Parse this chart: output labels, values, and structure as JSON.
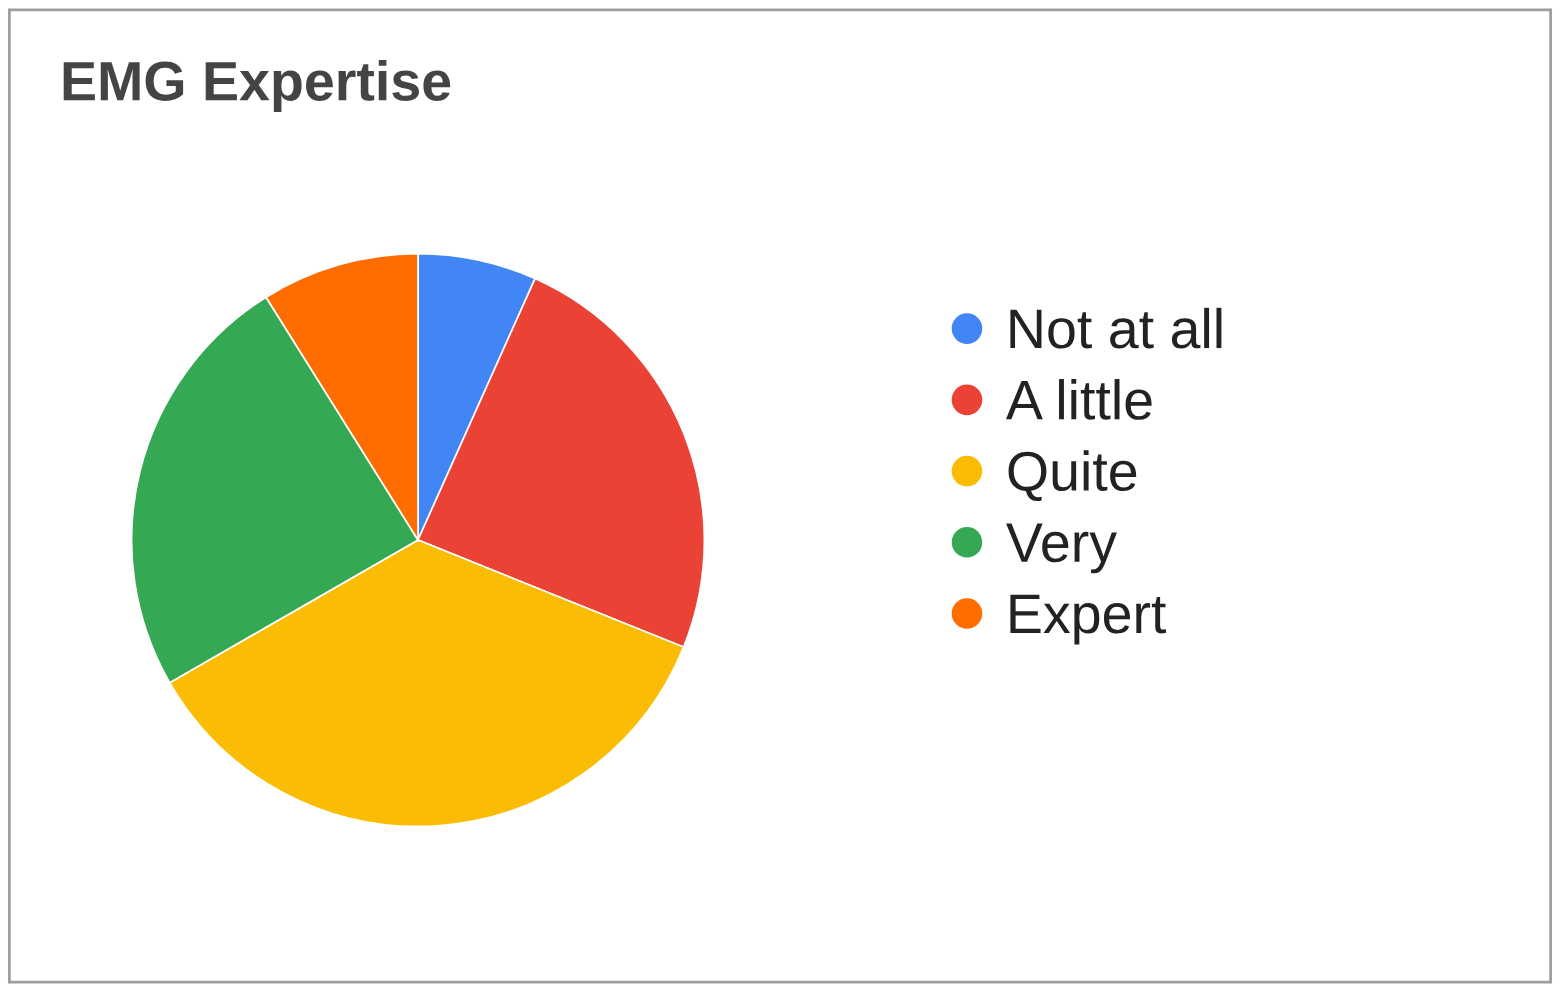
{
  "chart_data": {
    "type": "pie",
    "title": "EMG Expertise",
    "categories": [
      "Not at all",
      "A little",
      "Quite",
      "Very",
      "Expert"
    ],
    "values": [
      6.7,
      24.4,
      35.6,
      24.4,
      8.9
    ],
    "colors": [
      "#4285f4",
      "#ea4335",
      "#fbbc04",
      "#34a853",
      "#ff6d01"
    ],
    "legend": "right"
  }
}
